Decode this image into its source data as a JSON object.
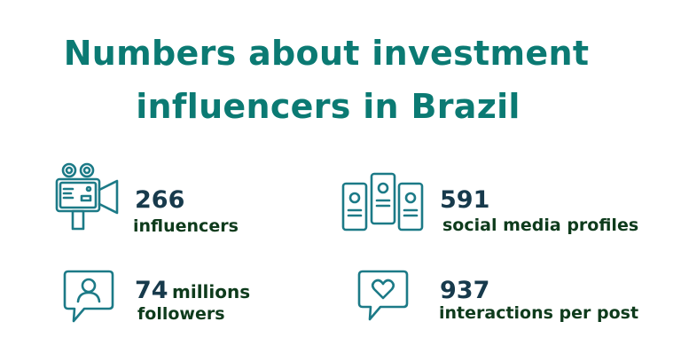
{
  "title": {
    "line1": "Numbers about investment",
    "line2": "influencers in Brazil"
  },
  "colors": {
    "title": "#0b7a73",
    "number": "#173a4c",
    "label": "#0e3b1c",
    "icon": "#1c7a87"
  },
  "stats": [
    {
      "icon": "video-camera-icon",
      "number": "266",
      "label": "influencers"
    },
    {
      "icon": "profile-cards-icon",
      "number": "591",
      "label": "social media profiles"
    },
    {
      "icon": "user-chat-bubble-icon",
      "number": "74",
      "unit": "millions",
      "label": "followers"
    },
    {
      "icon": "heart-chat-bubble-icon",
      "number": "937",
      "label": "interactions per post"
    }
  ]
}
